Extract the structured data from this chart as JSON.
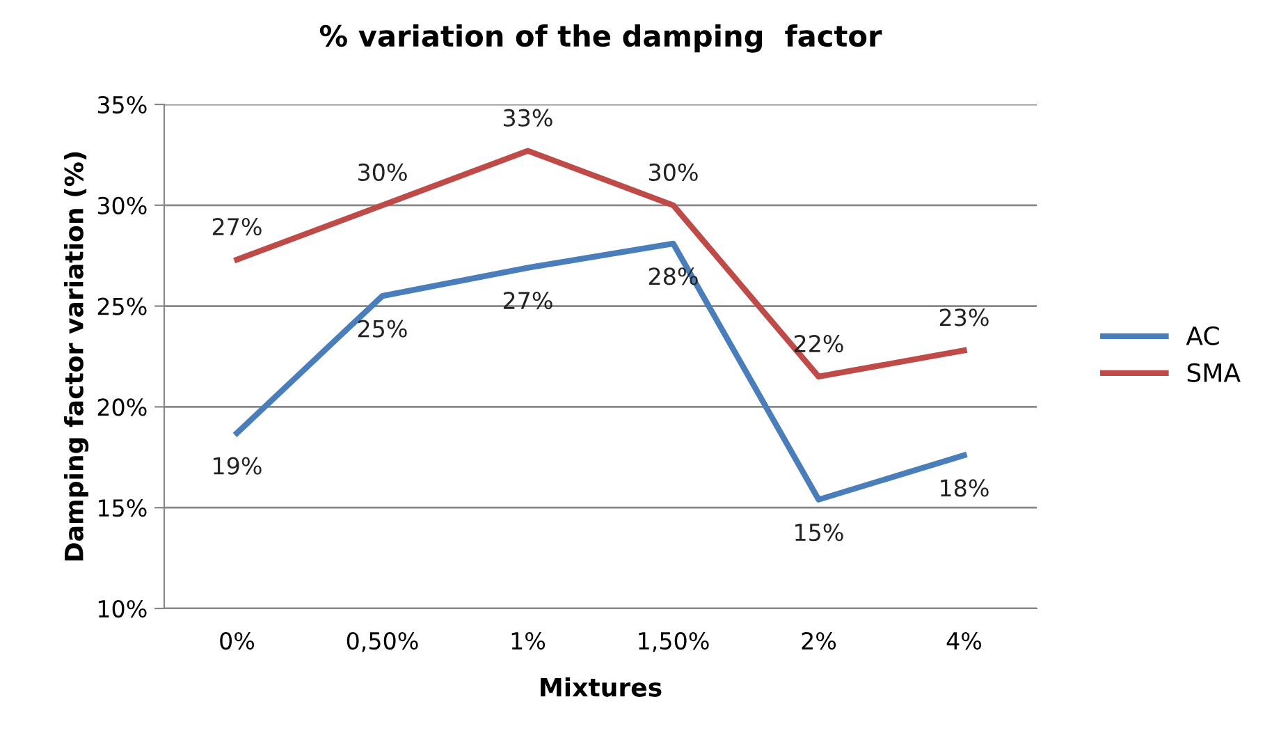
{
  "chart_data": {
    "type": "line",
    "title": "% variation of the damping  factor",
    "xlabel": "Mixtures",
    "ylabel": "Damping factor variation (%)",
    "categories": [
      "0%",
      "0,50%",
      "1%",
      "1,50%",
      "2%",
      "4%"
    ],
    "series": [
      {
        "name": "AC",
        "color": "#4a7ebb",
        "values": [
          18.7,
          25.5,
          26.9,
          28.1,
          15.4,
          17.6
        ],
        "value_labels": [
          "19%",
          "25%",
          "27%",
          "28%",
          "15%",
          "18%"
        ]
      },
      {
        "name": "SMA",
        "color": "#be4b48",
        "values": [
          27.3,
          30.0,
          32.7,
          30.0,
          21.5,
          22.8
        ],
        "value_labels": [
          "27%",
          "30%",
          "33%",
          "30%",
          "22%",
          "23%"
        ]
      }
    ],
    "ylim": [
      10,
      35
    ],
    "yticks": [
      {
        "value": 10,
        "label": "10%"
      },
      {
        "value": 15,
        "label": "15%"
      },
      {
        "value": 20,
        "label": "20%"
      },
      {
        "value": 25,
        "label": "25%"
      },
      {
        "value": 30,
        "label": "30%"
      },
      {
        "value": 35,
        "label": "35%"
      }
    ],
    "grid": "y",
    "legend": "right",
    "marker": "none",
    "line_style": "solid"
  }
}
